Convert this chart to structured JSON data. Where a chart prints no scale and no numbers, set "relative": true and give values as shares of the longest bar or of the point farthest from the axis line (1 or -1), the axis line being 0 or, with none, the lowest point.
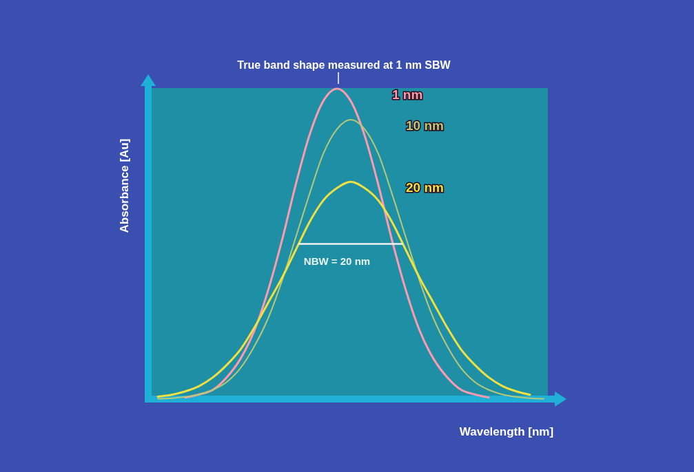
{
  "chart_data": {
    "type": "line",
    "relative": true,
    "xlabel": "Wavelength [nm]",
    "ylabel": "Absorbance [Au]",
    "annotations": [
      "True band shape measured at 1 nm SBW",
      "NBW = 20 nm"
    ],
    "categories": [
      null,
      null,
      null,
      null,
      null,
      null,
      null,
      null,
      null,
      null,
      null,
      null,
      null,
      null,
      null,
      null,
      null,
      null,
      null,
      null,
      null,
      null,
      null,
      null,
      null,
      null,
      null,
      null,
      null
    ],
    "series": [
      {
        "name": "1 nm",
        "color": "#ff9ab0",
        "values": [
          null,
          null,
          0.005,
          0.015,
          0.03,
          0.07,
          0.13,
          0.22,
          0.35,
          0.51,
          0.69,
          0.85,
          0.96,
          1,
          0.96,
          0.85,
          0.69,
          0.51,
          0.35,
          0.22,
          0.13,
          0.07,
          0.03,
          0.015,
          0.005,
          null,
          null,
          null,
          null
        ]
      },
      {
        "name": "10 nm",
        "color": "#b8c878",
        "values": [
          0.001,
          0.003,
          0.007,
          0.015,
          0.03,
          0.055,
          0.1,
          0.17,
          0.26,
          0.38,
          0.52,
          0.66,
          0.79,
          0.87,
          0.9,
          0.87,
          0.79,
          0.66,
          0.52,
          0.38,
          0.26,
          0.17,
          0.1,
          0.055,
          0.03,
          0.015,
          0.007,
          0.003,
          0.001
        ]
      },
      {
        "name": "20 nm",
        "color": "#f0e040",
        "values": [
          0.008,
          0.014,
          0.025,
          0.042,
          0.07,
          0.11,
          0.16,
          0.23,
          0.31,
          0.39,
          0.48,
          0.57,
          0.64,
          0.68,
          0.7,
          0.68,
          0.64,
          0.57,
          0.48,
          0.39,
          0.31,
          0.23,
          0.16,
          0.11,
          0.07,
          0.042,
          0.025,
          0.014,
          null
        ]
      }
    ]
  }
}
